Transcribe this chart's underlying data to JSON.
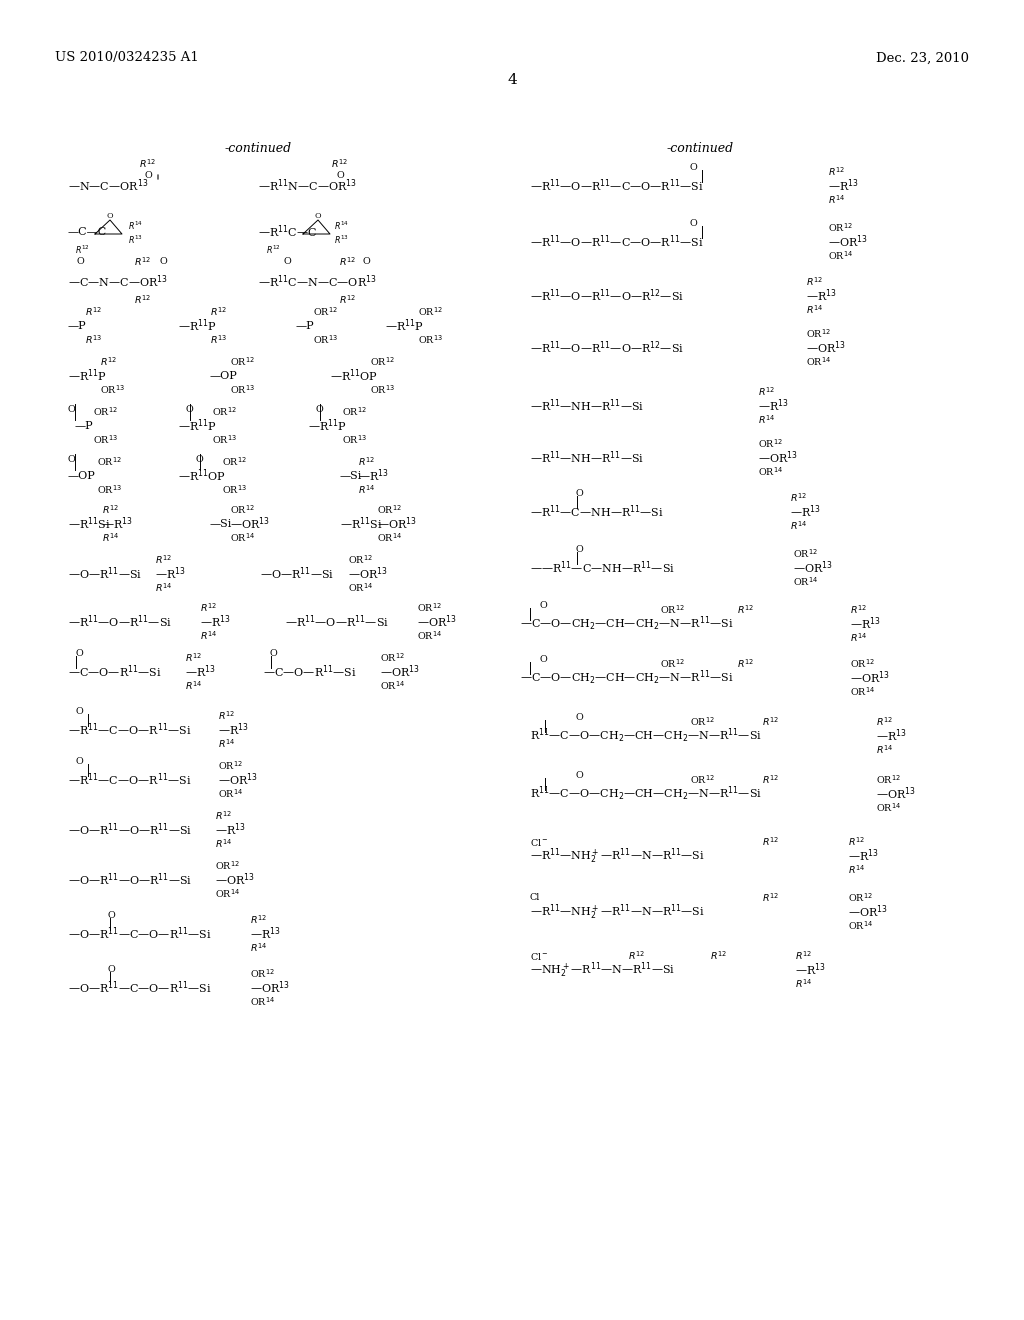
{
  "page_number": "4",
  "header_left": "US 2010/0324235 A1",
  "header_right": "Dec. 23, 2010",
  "background_color": "#ffffff",
  "continued_left": "-continued",
  "continued_right": "-continued",
  "font_size_base": 8.5,
  "font_size_small": 7.0,
  "font_size_header": 9.5
}
